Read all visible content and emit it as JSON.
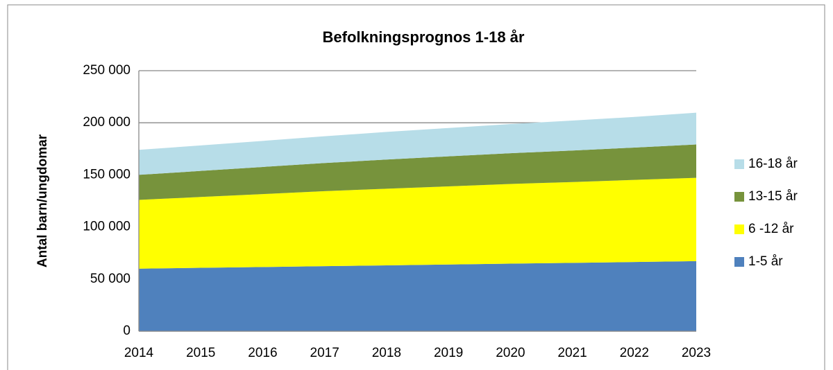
{
  "chart_data": {
    "type": "stacked_area",
    "title": "Befolkningsprognos 1-18 år",
    "ylabel": "Antal barn/ungdomar",
    "categories": [
      "2014",
      "2015",
      "2016",
      "2017",
      "2018",
      "2019",
      "2020",
      "2021",
      "2022",
      "2023"
    ],
    "series": [
      {
        "name": "1-5 år",
        "color": "#4f81bd",
        "values": [
          60000,
          60800,
          61600,
          62400,
          63200,
          64000,
          64800,
          65600,
          66400,
          67200
        ]
      },
      {
        "name": "6 -12 år",
        "color": "#ffff00",
        "values": [
          66000,
          68000,
          70000,
          72000,
          73500,
          75000,
          76500,
          77500,
          78800,
          80000
        ]
      },
      {
        "name": "13-15 år",
        "color": "#77933c",
        "values": [
          24000,
          25000,
          26000,
          27000,
          28000,
          28800,
          29500,
          30300,
          31000,
          32000
        ]
      },
      {
        "name": "16-18 år",
        "color": "#b7dde8",
        "values": [
          24000,
          24500,
          25000,
          25700,
          26500,
          27200,
          28000,
          28700,
          29400,
          30500
        ]
      }
    ],
    "ylim": [
      0,
      250000
    ],
    "yticks": [
      0,
      {
        "value": 50000,
        "label": "50 000"
      },
      {
        "value": 100000,
        "label": "100 000"
      },
      {
        "value": 150000,
        "label": "150 000"
      },
      {
        "value": 200000,
        "label": "200 000"
      },
      {
        "value": 250000,
        "label": "250 000"
      }
    ],
    "grid": true,
    "legend": "right"
  }
}
